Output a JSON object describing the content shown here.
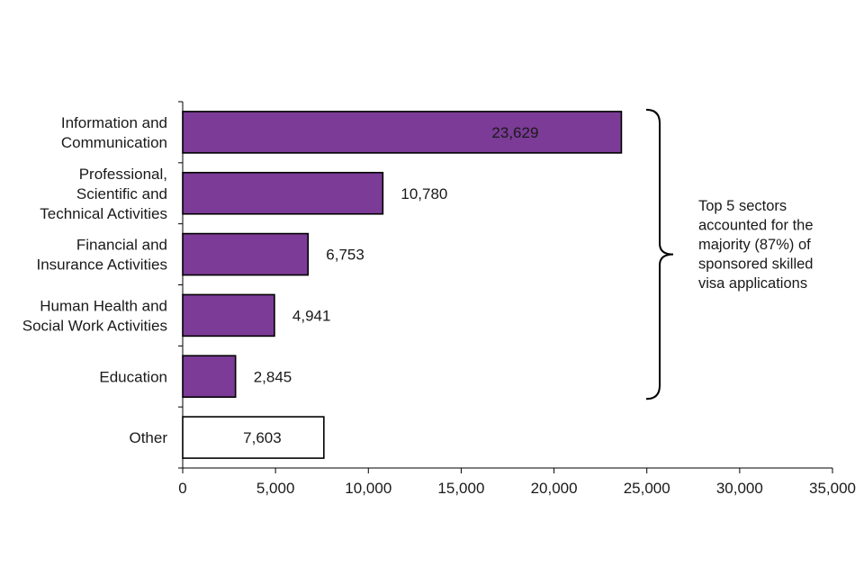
{
  "chart_data": {
    "type": "bar",
    "orientation": "horizontal",
    "categories": [
      [
        "Information and",
        "Communication"
      ],
      [
        "Professional,",
        "Scientific and",
        "Technical Activities"
      ],
      [
        "Financial and",
        "Insurance Activities"
      ],
      [
        "Human Health and",
        "Social Work Activities"
      ],
      [
        "Education"
      ],
      [
        "Other"
      ]
    ],
    "values": [
      23629,
      10780,
      6753,
      4941,
      2845,
      7603
    ],
    "value_labels": [
      "23,629",
      "10,780",
      "6,753",
      "4,941",
      "2,845",
      "7,603"
    ],
    "highlighted": [
      true,
      true,
      true,
      true,
      true,
      false
    ],
    "xlim": [
      0,
      35000
    ],
    "xticks": [
      0,
      5000,
      10000,
      15000,
      20000,
      25000,
      30000,
      35000
    ],
    "xtick_labels": [
      "0",
      "5,000",
      "10,000",
      "15,000",
      "20,000",
      "25,000",
      "30,000",
      "35,000"
    ],
    "title": "",
    "xlabel": "",
    "ylabel": "",
    "grid": false,
    "annotation": {
      "lines": [
        "Top 5 sectors",
        "accounted for the",
        "majority (87%) of",
        "sponsored skilled",
        "visa applications"
      ],
      "brackets_categories": [
        0,
        4
      ]
    },
    "colors": {
      "highlight_fill": "#7b3b96",
      "other_fill": "#ffffff",
      "bar_stroke": "#000000",
      "axis": "#000000"
    }
  }
}
